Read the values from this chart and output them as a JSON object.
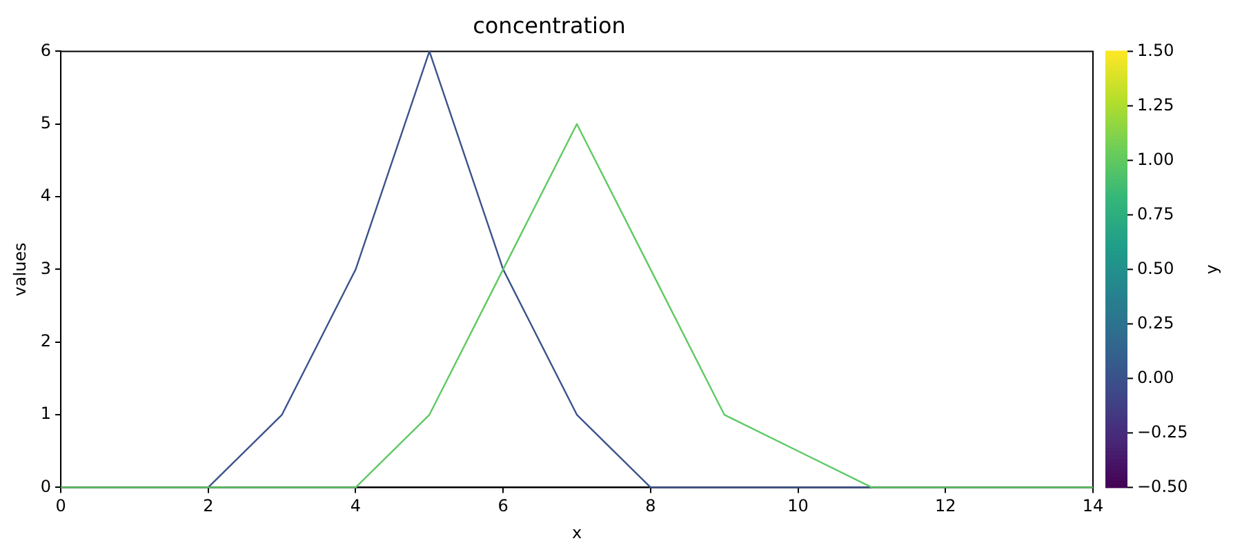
{
  "chart_data": {
    "type": "line",
    "title": "concentration",
    "xlabel": "x",
    "ylabel": "values",
    "clabel": "y",
    "x": [
      0,
      1,
      2,
      3,
      4,
      5,
      6,
      7,
      8,
      9,
      10,
      11,
      12,
      13,
      14
    ],
    "series": [
      {
        "color": "#3b528b",
        "values": [
          null,
          null,
          0,
          1,
          3,
          6,
          3,
          1,
          0,
          0,
          0,
          0,
          null,
          null,
          null
        ]
      },
      {
        "color": "#5ec962",
        "values": [
          0,
          0,
          0,
          0,
          0,
          1,
          3,
          5,
          3,
          1,
          0.5,
          0,
          0,
          0,
          0
        ]
      }
    ],
    "xlim": [
      0,
      14
    ],
    "xticks": [
      0,
      2,
      4,
      6,
      8,
      10,
      12,
      14
    ],
    "ylim": [
      0,
      6
    ],
    "yticks": [
      0,
      1,
      2,
      3,
      4,
      5,
      6
    ],
    "clim": [
      -0.5,
      1.5
    ],
    "cticks": [
      {
        "value": -0.5,
        "label": "−0.50"
      },
      {
        "value": -0.25,
        "label": "−0.25"
      },
      {
        "value": 0,
        "label": "0.00"
      },
      {
        "value": 0.25,
        "label": "0.25"
      },
      {
        "value": 0.5,
        "label": "0.50"
      },
      {
        "value": 0.75,
        "label": "0.75"
      },
      {
        "value": 1,
        "label": "1.00"
      },
      {
        "value": 1.25,
        "label": "1.25"
      },
      {
        "value": 1.5,
        "label": "1.50"
      }
    ],
    "grid": false,
    "legend": false,
    "marker": "none",
    "line_style": "solid"
  }
}
